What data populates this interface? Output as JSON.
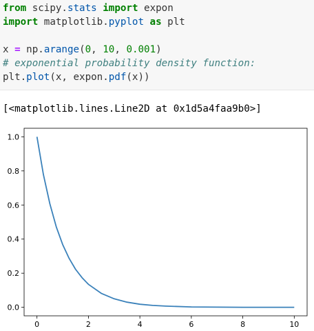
{
  "code": {
    "line1": {
      "from": "from",
      "module": " scipy.",
      "stats": "stats",
      "space": " ",
      "import": "import",
      "name": " expon"
    },
    "line2": {
      "import": "import",
      "module": " matplotlib.",
      "pyplot": "pyplot",
      "space": " ",
      "as": "as",
      "alias": " plt"
    },
    "line4": {
      "x": "x ",
      "eq": "=",
      "np": " np.",
      "arange": "arange",
      "open": "(",
      "a": "0",
      "c1": ", ",
      "b": "10",
      "c2": ", ",
      "c": "0.001",
      "close": ")"
    },
    "line5": {
      "comment": "# exponential probability density function:"
    },
    "line6": {
      "plt": "plt.",
      "plot": "plot",
      "args": "(x, expon.",
      "pdf": "pdf",
      "rest": "(x))"
    }
  },
  "output": {
    "text": "[<matplotlib.lines.Line2D at 0x1d5a4faa9b0>]"
  },
  "chart_data": {
    "type": "line",
    "title": "",
    "xlabel": "",
    "ylabel": "",
    "xlim": [
      -0.5,
      10.5
    ],
    "ylim": [
      -0.05,
      1.05
    ],
    "xticks": [
      "0",
      "2",
      "4",
      "6",
      "8",
      "10"
    ],
    "yticks": [
      "0.0",
      "0.2",
      "0.4",
      "0.6",
      "0.8",
      "1.0"
    ],
    "grid": false,
    "line_color": "#3a81ba",
    "series": [
      {
        "x": [
          0,
          0.25,
          0.5,
          0.75,
          1,
          1.25,
          1.5,
          1.75,
          2,
          2.5,
          3,
          3.5,
          4,
          4.5,
          5,
          6,
          7,
          8,
          9,
          10
        ],
        "values": [
          1.0,
          0.779,
          0.607,
          0.472,
          0.368,
          0.287,
          0.223,
          0.174,
          0.135,
          0.082,
          0.05,
          0.03,
          0.018,
          0.011,
          0.007,
          0.002,
          0.001,
          0.0,
          0.0,
          0.0
        ]
      }
    ]
  }
}
